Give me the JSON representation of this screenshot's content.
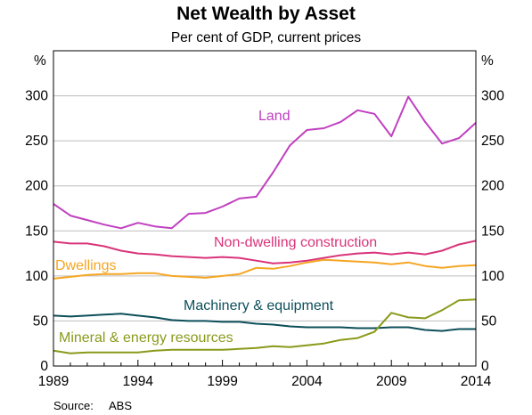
{
  "chart_data": {
    "type": "line",
    "title": "Net Wealth by Asset",
    "subtitle": "Per cent of GDP, current prices",
    "y_unit_left": "%",
    "y_unit_right": "%",
    "source_label": "Source:",
    "source_value": "ABS",
    "xlim": [
      1989,
      2014
    ],
    "ylim": [
      0,
      350
    ],
    "y_ticks": [
      "0",
      "50",
      "100",
      "150",
      "200",
      "250",
      "300"
    ],
    "x_ticks": [
      "1989",
      "1994",
      "1999",
      "2004",
      "2009",
      "2014"
    ],
    "grid": "horizontal",
    "x": [
      1989,
      1990,
      1991,
      1992,
      1993,
      1994,
      1995,
      1996,
      1997,
      1998,
      1999,
      2000,
      2001,
      2002,
      2003,
      2004,
      2005,
      2006,
      2007,
      2008,
      2009,
      2010,
      2011,
      2012,
      2013,
      2014
    ],
    "series": [
      {
        "name": "Land",
        "color": "#c040c0",
        "values": [
          180,
          167,
          162,
          157,
          153,
          159,
          155,
          153,
          169,
          170,
          177,
          186,
          188,
          215,
          245,
          262,
          264,
          271,
          284,
          280,
          255,
          299,
          271,
          247,
          253,
          270
        ]
      },
      {
        "name": "Non-dwelling construction",
        "color": "#d9347a",
        "values": [
          138,
          136,
          136,
          133,
          128,
          125,
          124,
          122,
          121,
          120,
          121,
          120,
          117,
          114,
          115,
          117,
          120,
          123,
          125,
          126,
          124,
          126,
          124,
          128,
          135,
          139
        ]
      },
      {
        "name": "Dwellings",
        "color": "#f5a623",
        "values": [
          97,
          99,
          101,
          102,
          102,
          103,
          103,
          100,
          99,
          98,
          100,
          102,
          109,
          108,
          111,
          115,
          118,
          117,
          116,
          115,
          113,
          115,
          111,
          109,
          111,
          112
        ]
      },
      {
        "name": "Machinery & equipment",
        "color": "#0d4f5a",
        "values": [
          56,
          55,
          56,
          57,
          58,
          56,
          54,
          51,
          50,
          50,
          49,
          49,
          47,
          46,
          44,
          43,
          43,
          43,
          42,
          42,
          43,
          43,
          40,
          39,
          41,
          41
        ]
      },
      {
        "name": "Mineral & energy resources",
        "color": "#8a9a1a",
        "values": [
          17,
          14,
          15,
          15,
          15,
          15,
          17,
          18,
          18,
          18,
          18,
          19,
          20,
          22,
          21,
          23,
          25,
          29,
          31,
          38,
          59,
          54,
          53,
          62,
          73,
          74
        ]
      }
    ],
    "series_labels": {
      "Land": "Land",
      "Non-dwelling construction": "Non-dwelling construction",
      "Dwellings": "Dwellings",
      "Machinery & equipment": "Machinery & equipment",
      "Mineral & energy resources": "Mineral & energy resources"
    }
  }
}
